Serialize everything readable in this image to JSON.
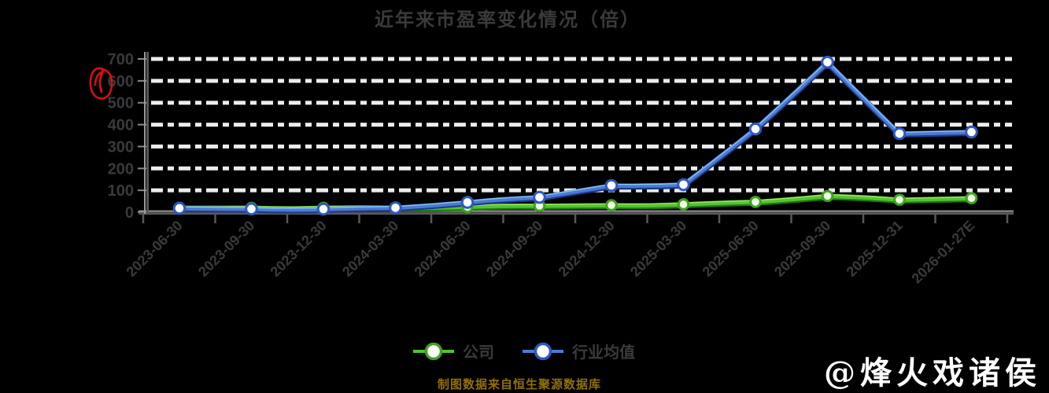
{
  "title": "近年来市盈率变化情况（倍）",
  "source_note": "制图数据来自恒生聚源数据库",
  "watermark": "@烽火戏诸侯",
  "annotation": {
    "label": "red-scribble-circle",
    "near_ytick": "600",
    "color": "#e01111"
  },
  "colors": {
    "background": "#000000",
    "company_green": "#55c232",
    "company_green_dark": "#1c7a0e",
    "company_green_light": "#a8ef6b",
    "industry_blue": "#4e7ad4",
    "industry_blue_dark": "#1c3a8c",
    "industry_blue_light": "#8fd8f6",
    "grid_white": "#ececec",
    "axis_dark": "#585858",
    "axis_light": "#9a9a9a",
    "text_dark": "#3a3a3c",
    "source_gold": "#926f08",
    "marker_fill": "#ffffff"
  },
  "legend": [
    {
      "label": "公司",
      "color": "#55c232",
      "ring": "#3fa21f"
    },
    {
      "label": "行业均值",
      "color": "#4e7ad4",
      "ring": "#2e57c0"
    }
  ],
  "chart_data": {
    "type": "line",
    "title": "近年来市盈率变化情况（倍）",
    "categories": [
      "2023-06-30",
      "2023-09-30",
      "2023-12-30",
      "2024-03-30",
      "2024-06-30",
      "2024-09-30",
      "2024-12-30",
      "2025-03-30",
      "2025-06-30",
      "2025-09-30",
      "2025-12-31",
      "2026-01-27E"
    ],
    "series": [
      {
        "name": "公司",
        "color": "#55c232",
        "values": [
          20,
          20,
          20,
          20,
          24,
          29,
          32,
          36,
          47,
          74,
          57,
          64
        ]
      },
      {
        "name": "行业均值",
        "color": "#4e7ad4",
        "values": [
          18,
          15,
          14,
          20,
          45,
          68,
          122,
          126,
          380,
          685,
          359,
          366
        ]
      }
    ],
    "ylim": [
      0,
      700
    ],
    "yticks": [
      0,
      100,
      200,
      300,
      400,
      500,
      600,
      700
    ],
    "xlabel": "",
    "ylabel": "",
    "grid": "horizontal-dashed-white",
    "x_label_rotation": -45,
    "legend_position": "bottom"
  }
}
